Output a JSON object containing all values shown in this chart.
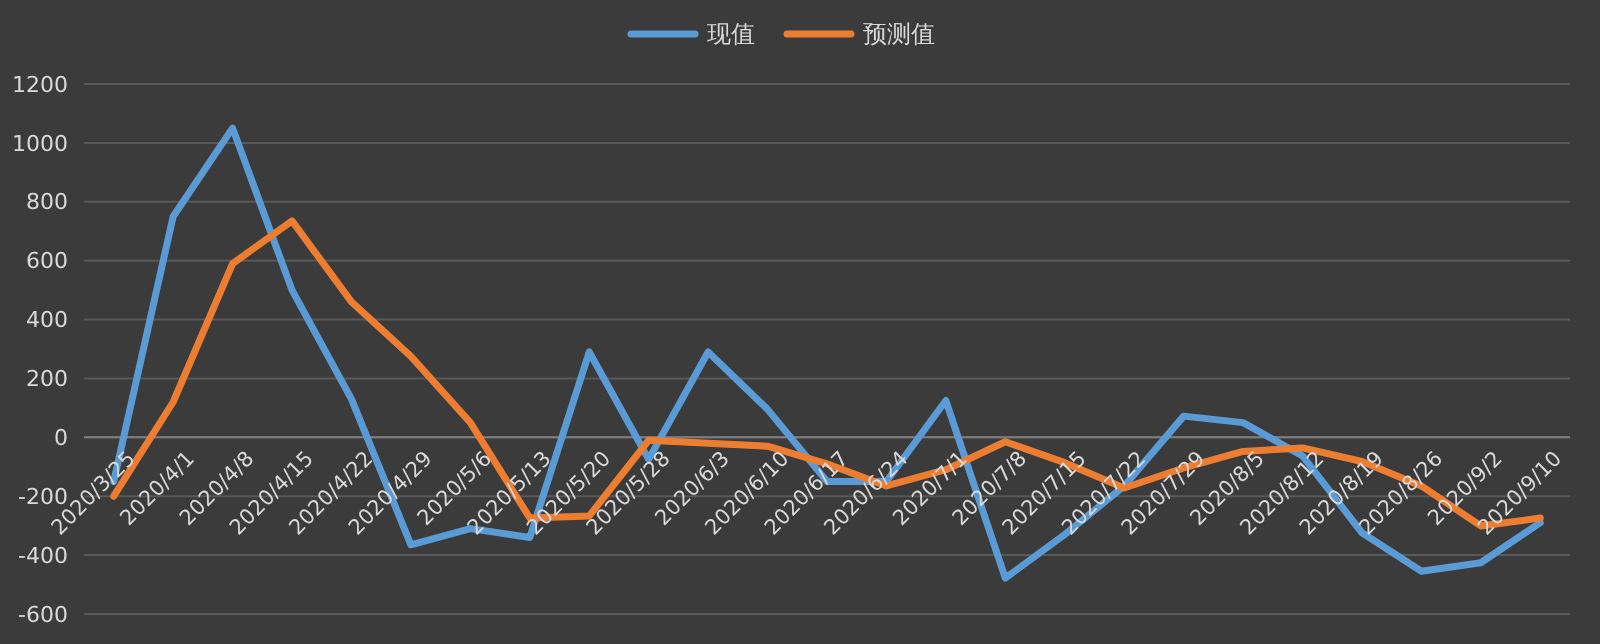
{
  "chart_data": {
    "type": "line",
    "categories": [
      "2020/3/25",
      "2020/4/1",
      "2020/4/8",
      "2020/4/15",
      "2020/4/22",
      "2020/4/29",
      "2020/5/6",
      "2020/5/13",
      "2020/5/20",
      "2020/5/28",
      "2020/6/3",
      "2020/6/10",
      "2020/6/17",
      "2020/6/24",
      "2020/7/1",
      "2020/7/8",
      "2020/7/15",
      "2020/7/22",
      "2020/7/29",
      "2020/8/5",
      "2020/8/12",
      "2020/8/19",
      "2020/8/26",
      "2020/9/2",
      "2020/9/10"
    ],
    "series": [
      {
        "name": "现值",
        "color": "#5b9bd5",
        "values": [
          -150,
          750,
          1050,
          500,
          130,
          -365,
          -310,
          -340,
          290,
          -75,
          290,
          95,
          -150,
          -150,
          125,
          -478,
          -330,
          -165,
          72,
          50,
          -63,
          -324,
          -455,
          -426,
          -290
        ]
      },
      {
        "name": "预测值",
        "color": "#ed7d31",
        "values": [
          -200,
          120,
          590,
          735,
          460,
          275,
          50,
          -274,
          -267,
          -10,
          -20,
          -30,
          -90,
          -165,
          -110,
          -15,
          -86,
          -172,
          -104,
          -48,
          -36,
          -82,
          -165,
          -301,
          -274
        ]
      }
    ],
    "ylim": [
      -600,
      1200
    ],
    "yticks": [
      -600,
      -400,
      -200,
      0,
      200,
      400,
      600,
      800,
      1000,
      1200
    ],
    "grid": "y",
    "legend": "top",
    "marker": "none",
    "line_style": "solid"
  }
}
